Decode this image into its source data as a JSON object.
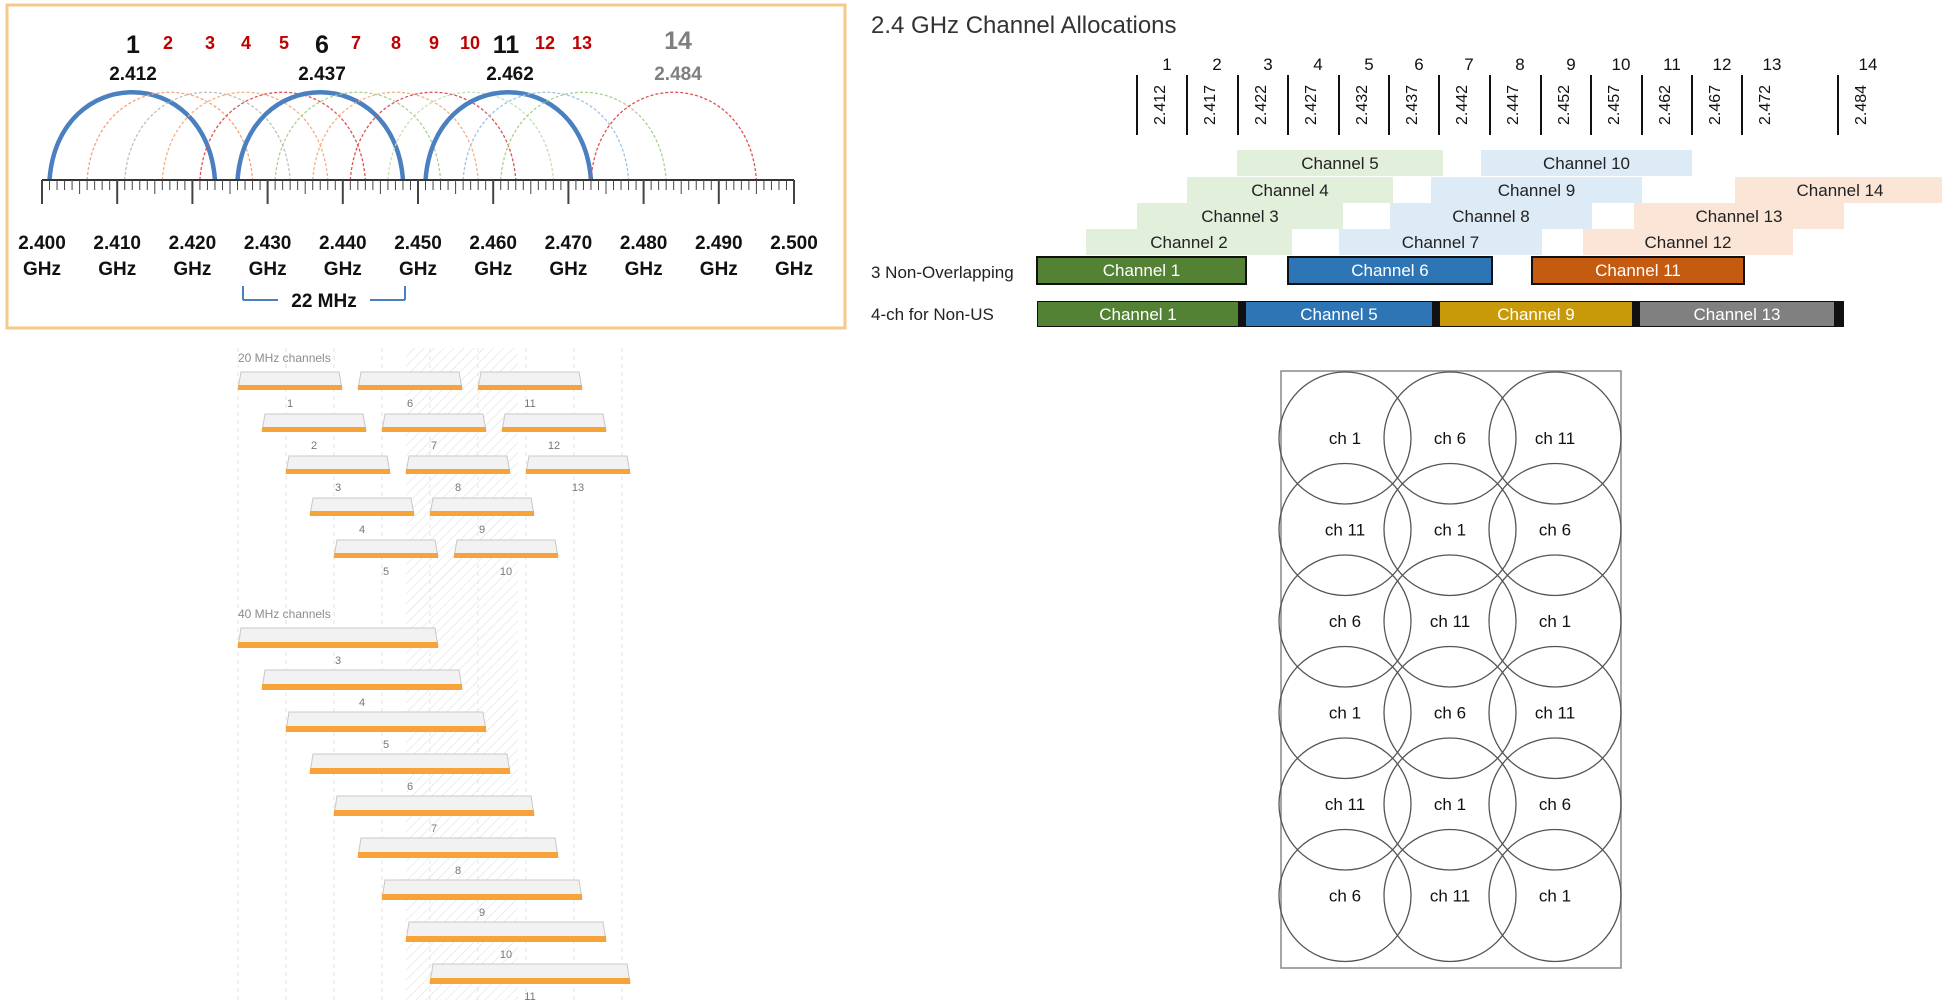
{
  "colors": {
    "panel_border": "#f5c98a",
    "arc_main": "#4a7fc0",
    "label_red": "#c00000",
    "label_grey": "#7f7f7f",
    "green": "#548235",
    "blue": "#2e75b6",
    "orange": "#c55a11",
    "gold": "#c89a0a",
    "grey": "#808080",
    "lt_green": "#e2efda",
    "lt_blue": "#ddebf7",
    "lt_orange": "#fbe5d6",
    "bar_orange": "#f8a23a"
  },
  "arc_panel": {
    "top_channels": [
      {
        "num": "1",
        "bold": true
      },
      {
        "num": "2"
      },
      {
        "num": "3"
      },
      {
        "num": "4"
      },
      {
        "num": "5"
      },
      {
        "num": "6",
        "bold": true
      },
      {
        "num": "7"
      },
      {
        "num": "8"
      },
      {
        "num": "9"
      },
      {
        "num": "10"
      },
      {
        "num": "11",
        "bold": true
      },
      {
        "num": "12"
      },
      {
        "num": "13"
      },
      {
        "num": "14",
        "grey": true
      }
    ],
    "center_freqs": [
      "2.412",
      "2.437",
      "2.462",
      "2.484"
    ],
    "axis_ticks": [
      "2.400",
      "2.410",
      "2.420",
      "2.430",
      "2.440",
      "2.450",
      "2.460",
      "2.470",
      "2.480",
      "2.490",
      "2.500"
    ],
    "axis_unit": "GHz",
    "bandwidth_label": "22 MHz"
  },
  "alloc": {
    "title": "2.4 GHz Channel Allocations",
    "channels": [
      {
        "num": "1",
        "freq": "2.412"
      },
      {
        "num": "2",
        "freq": "2.417"
      },
      {
        "num": "3",
        "freq": "2.422"
      },
      {
        "num": "4",
        "freq": "2.427"
      },
      {
        "num": "5",
        "freq": "2.432"
      },
      {
        "num": "6",
        "freq": "2.437"
      },
      {
        "num": "7",
        "freq": "2.442"
      },
      {
        "num": "8",
        "freq": "2.447"
      },
      {
        "num": "9",
        "freq": "2.452"
      },
      {
        "num": "10",
        "freq": "2.457"
      },
      {
        "num": "11",
        "freq": "2.462"
      },
      {
        "num": "12",
        "freq": "2.467"
      },
      {
        "num": "13",
        "freq": "2.472"
      },
      {
        "num": "14",
        "freq": "2.484"
      }
    ],
    "staggered": [
      {
        "label": "Channel 5"
      },
      {
        "label": "Channel 10"
      },
      {
        "label": "Channel 4"
      },
      {
        "label": "Channel 9"
      },
      {
        "label": "Channel 14"
      },
      {
        "label": "Channel 3"
      },
      {
        "label": "Channel 8"
      },
      {
        "label": "Channel 13"
      },
      {
        "label": "Channel 2"
      },
      {
        "label": "Channel 7"
      },
      {
        "label": "Channel 12"
      }
    ],
    "row1_label": "3 Non-Overlapping",
    "row1": [
      "Channel 1",
      "Channel 6",
      "Channel 11"
    ],
    "row2_label": "4-ch for Non-US",
    "row2": [
      "Channel 1",
      "Channel 5",
      "Channel 9",
      "Channel 13"
    ]
  },
  "bars": {
    "title20": "20 MHz channels",
    "ch20": [
      "1",
      "6",
      "11",
      "2",
      "7",
      "12",
      "3",
      "8",
      "13",
      "4",
      "9",
      "5",
      "10"
    ],
    "title40": "40 MHz channels",
    "ch40": [
      "3",
      "4",
      "5",
      "6",
      "7",
      "8",
      "9",
      "10",
      "11"
    ]
  },
  "cells": {
    "rows": [
      [
        "ch 1",
        "ch 6",
        "ch 11"
      ],
      [
        "ch 11",
        "ch 1",
        "ch 6"
      ],
      [
        "ch 6",
        "ch 11",
        "ch 1"
      ],
      [
        "ch 1",
        "ch 6",
        "ch 11"
      ],
      [
        "ch 11",
        "ch 1",
        "ch 6"
      ],
      [
        "ch 6",
        "ch 11",
        "ch 1"
      ]
    ]
  }
}
